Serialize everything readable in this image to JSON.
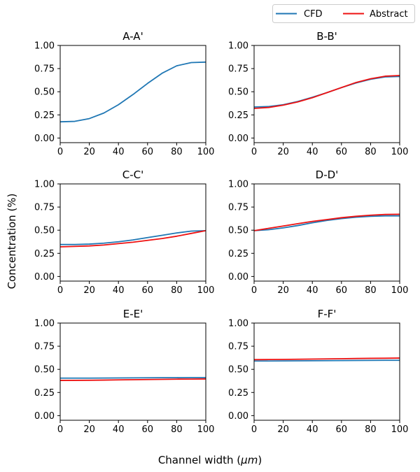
{
  "figure": {
    "ylabel": "Concentration (%)",
    "xlabel_prefix": "Channel width (",
    "xlabel_unit": "μm",
    "xlabel_suffix": ")"
  },
  "legend": {
    "placement": "top-right",
    "entries": [
      {
        "name": "CFD",
        "color": "#1f77b4"
      },
      {
        "name": "Abstract",
        "color": "#ee1111"
      }
    ]
  },
  "chart_data": [
    {
      "type": "line",
      "title": "A-A'",
      "xlim": [
        0,
        100
      ],
      "ylim": [
        -0.05,
        1.0
      ],
      "xticks": [
        "0",
        "20",
        "40",
        "60",
        "80",
        "100"
      ],
      "yticks": [
        "0.00",
        "0.25",
        "0.50",
        "0.75",
        "1.00"
      ],
      "x": [
        0,
        10,
        20,
        30,
        40,
        50,
        60,
        70,
        80,
        90,
        100
      ],
      "series": [
        {
          "name": "CFD",
          "color": "#1f77b4",
          "values": [
            0.175,
            0.18,
            0.21,
            0.27,
            0.36,
            0.47,
            0.59,
            0.7,
            0.78,
            0.815,
            0.82
          ]
        }
      ]
    },
    {
      "type": "line",
      "title": "B-B'",
      "xlim": [
        0,
        100
      ],
      "ylim": [
        -0.05,
        1.0
      ],
      "xticks": [
        "0",
        "20",
        "40",
        "60",
        "80",
        "100"
      ],
      "yticks": [
        "0.00",
        "0.25",
        "0.50",
        "0.75",
        "1.00"
      ],
      "x": [
        0,
        10,
        20,
        30,
        40,
        50,
        60,
        70,
        80,
        90,
        100
      ],
      "series": [
        {
          "name": "CFD",
          "color": "#1f77b4",
          "values": [
            0.335,
            0.34,
            0.36,
            0.395,
            0.44,
            0.49,
            0.545,
            0.595,
            0.635,
            0.66,
            0.665
          ]
        },
        {
          "name": "Abstract",
          "color": "#ee1111",
          "values": [
            0.32,
            0.33,
            0.355,
            0.39,
            0.435,
            0.49,
            0.545,
            0.6,
            0.64,
            0.668,
            0.675
          ]
        }
      ]
    },
    {
      "type": "line",
      "title": "C-C'",
      "xlim": [
        0,
        100
      ],
      "ylim": [
        -0.05,
        1.0
      ],
      "xticks": [
        "0",
        "20",
        "40",
        "60",
        "80",
        "100"
      ],
      "yticks": [
        "0.00",
        "0.25",
        "0.50",
        "0.75",
        "1.00"
      ],
      "x": [
        0,
        10,
        20,
        30,
        40,
        50,
        60,
        70,
        80,
        90,
        100
      ],
      "series": [
        {
          "name": "CFD",
          "color": "#1f77b4",
          "values": [
            0.345,
            0.345,
            0.35,
            0.36,
            0.375,
            0.395,
            0.42,
            0.445,
            0.47,
            0.49,
            0.495
          ]
        },
        {
          "name": "Abstract",
          "color": "#ee1111",
          "values": [
            0.32,
            0.325,
            0.33,
            0.34,
            0.355,
            0.37,
            0.39,
            0.41,
            0.435,
            0.465,
            0.495
          ]
        }
      ]
    },
    {
      "type": "line",
      "title": "D-D'",
      "xlim": [
        0,
        100
      ],
      "ylim": [
        -0.05,
        1.0
      ],
      "xticks": [
        "0",
        "20",
        "40",
        "60",
        "80",
        "100"
      ],
      "yticks": [
        "0.00",
        "0.25",
        "0.50",
        "0.75",
        "1.00"
      ],
      "x": [
        0,
        10,
        20,
        30,
        40,
        50,
        60,
        70,
        80,
        90,
        100
      ],
      "series": [
        {
          "name": "CFD",
          "color": "#1f77b4",
          "values": [
            0.495,
            0.505,
            0.525,
            0.55,
            0.58,
            0.605,
            0.625,
            0.64,
            0.65,
            0.655,
            0.655
          ]
        },
        {
          "name": "Abstract",
          "color": "#ee1111",
          "values": [
            0.495,
            0.52,
            0.545,
            0.57,
            0.595,
            0.615,
            0.635,
            0.65,
            0.662,
            0.67,
            0.672
          ]
        }
      ]
    },
    {
      "type": "line",
      "title": "E-E'",
      "xlim": [
        0,
        100
      ],
      "ylim": [
        -0.05,
        1.0
      ],
      "xticks": [
        "0",
        "20",
        "40",
        "60",
        "80",
        "100"
      ],
      "yticks": [
        "0.00",
        "0.25",
        "0.50",
        "0.75",
        "1.00"
      ],
      "x": [
        0,
        10,
        20,
        30,
        40,
        50,
        60,
        70,
        80,
        90,
        100
      ],
      "series": [
        {
          "name": "CFD",
          "color": "#1f77b4",
          "values": [
            0.405,
            0.405,
            0.405,
            0.406,
            0.407,
            0.408,
            0.409,
            0.41,
            0.41,
            0.411,
            0.411
          ]
        },
        {
          "name": "Abstract",
          "color": "#ee1111",
          "values": [
            0.38,
            0.381,
            0.382,
            0.384,
            0.386,
            0.388,
            0.39,
            0.392,
            0.394,
            0.395,
            0.396
          ]
        }
      ]
    },
    {
      "type": "line",
      "title": "F-F'",
      "xlim": [
        0,
        100
      ],
      "ylim": [
        -0.05,
        1.0
      ],
      "xticks": [
        "0",
        "20",
        "40",
        "60",
        "80",
        "100"
      ],
      "yticks": [
        "0.00",
        "0.25",
        "0.50",
        "0.75",
        "1.00"
      ],
      "x": [
        0,
        10,
        20,
        30,
        40,
        50,
        60,
        70,
        80,
        90,
        100
      ],
      "series": [
        {
          "name": "CFD",
          "color": "#1f77b4",
          "values": [
            0.59,
            0.59,
            0.591,
            0.592,
            0.593,
            0.594,
            0.595,
            0.596,
            0.597,
            0.598,
            0.598
          ]
        },
        {
          "name": "Abstract",
          "color": "#ee1111",
          "values": [
            0.605,
            0.606,
            0.607,
            0.609,
            0.611,
            0.613,
            0.615,
            0.617,
            0.619,
            0.62,
            0.622
          ]
        }
      ]
    }
  ]
}
